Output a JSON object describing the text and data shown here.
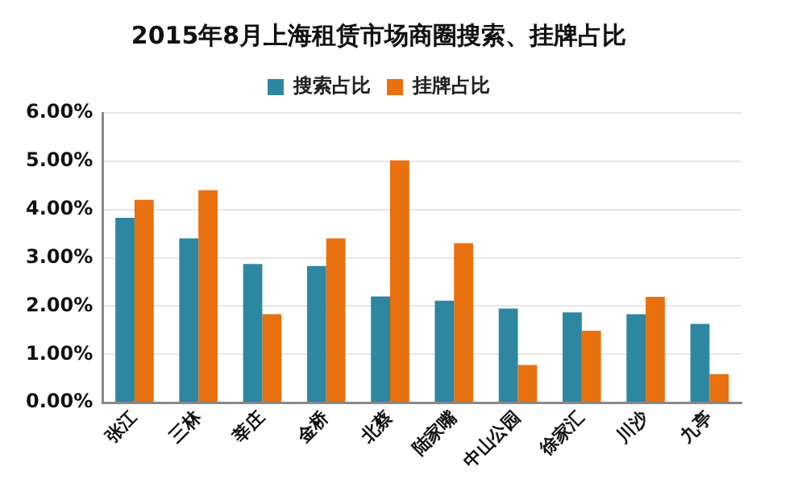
{
  "chart_data": {
    "type": "bar",
    "title": "2015年8月上海租赁市场商圈搜索、挂牌占比",
    "categories": [
      "张江",
      "三林",
      "莘庄",
      "金桥",
      "北蔡",
      "陆家嘴",
      "中山公园",
      "徐家汇",
      "川沙",
      "九亭"
    ],
    "series": [
      {
        "name": "搜索占比",
        "color": "#2e87a0",
        "values": [
          3.83,
          3.4,
          2.87,
          2.83,
          2.2,
          2.11,
          1.95,
          1.87,
          1.83,
          1.63
        ]
      },
      {
        "name": "挂牌占比",
        "color": "#e8700f",
        "values": [
          4.2,
          4.4,
          1.83,
          3.4,
          5.02,
          3.3,
          0.78,
          1.49,
          2.19,
          0.59
        ]
      }
    ],
    "ylim": [
      0,
      6
    ],
    "yticks": [
      {
        "value": 0,
        "label": "0.00%"
      },
      {
        "value": 1,
        "label": "1.00%"
      },
      {
        "value": 2,
        "label": "2.00%"
      },
      {
        "value": 3,
        "label": "3.00%"
      },
      {
        "value": 4,
        "label": "4.00%"
      },
      {
        "value": 5,
        "label": "5.00%"
      },
      {
        "value": 6,
        "label": "6.00%"
      }
    ],
    "grid": "y",
    "legend": "top"
  }
}
